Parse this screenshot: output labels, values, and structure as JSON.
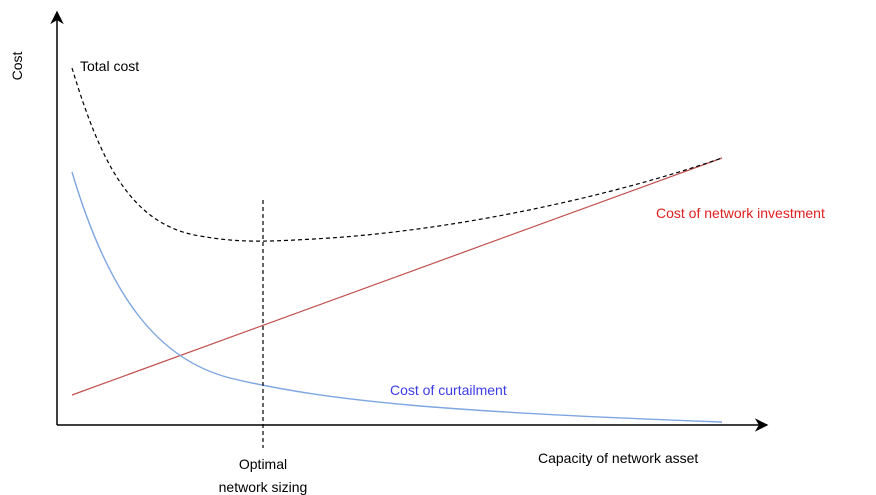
{
  "axes": {
    "y_label": "Cost",
    "x_label": "Capacity of network asset"
  },
  "curves": {
    "total": "Total cost",
    "investment": "Cost of network investment",
    "curtailment": "Cost of curtailment"
  },
  "marker": {
    "lines": [
      "Optimal",
      "network sizing"
    ]
  }
}
